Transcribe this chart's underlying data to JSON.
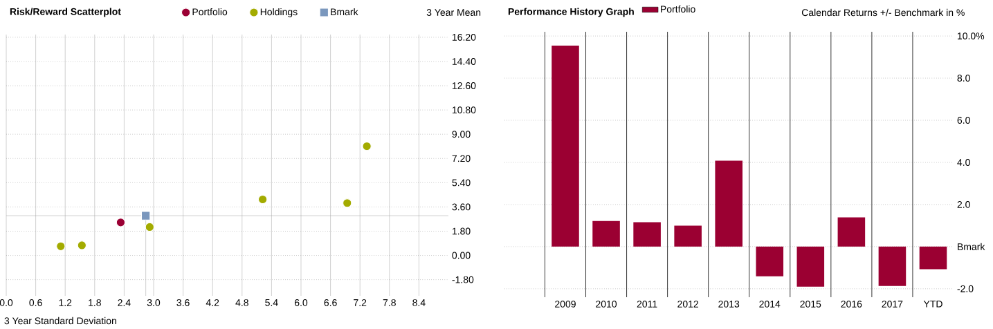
{
  "chart_data": [
    {
      "type": "scatter",
      "title": "Risk/Reward Scatterplot",
      "xlabel": "3 Year Standard Deviation",
      "ylabel": "3 Year Mean",
      "xlim": [
        0,
        9.0
      ],
      "ylim": [
        -3.0,
        16.4
      ],
      "xticks": [
        {
          "value": 0,
          "label": "0.0"
        },
        {
          "value": 0.6,
          "label": "0.6"
        },
        {
          "value": 1.2,
          "label": "1.2"
        },
        {
          "value": 1.8,
          "label": "1.8"
        },
        {
          "value": 2.4,
          "label": "2.4"
        },
        {
          "value": 3.0,
          "label": "3.0"
        },
        {
          "value": 3.6,
          "label": "3.6"
        },
        {
          "value": 4.2,
          "label": "4.2"
        },
        {
          "value": 4.8,
          "label": "4.8"
        },
        {
          "value": 5.4,
          "label": "5.4"
        },
        {
          "value": 6.0,
          "label": "6.0"
        },
        {
          "value": 6.6,
          "label": "6.6"
        },
        {
          "value": 7.2,
          "label": "7.2"
        },
        {
          "value": 7.8,
          "label": "7.8"
        },
        {
          "value": 8.4,
          "label": "8.4"
        }
      ],
      "yticks": [
        {
          "value": -1.8,
          "label": "-1.80"
        },
        {
          "value": 0,
          "label": "0.00"
        },
        {
          "value": 1.8,
          "label": "1.80"
        },
        {
          "value": 3.6,
          "label": "3.60"
        },
        {
          "value": 5.4,
          "label": "5.40"
        },
        {
          "value": 7.2,
          "label": "7.20"
        },
        {
          "value": 9.0,
          "label": "9.00"
        },
        {
          "value": 10.8,
          "label": "10.80"
        },
        {
          "value": 12.6,
          "label": "12.60"
        },
        {
          "value": 14.4,
          "label": "14.40"
        },
        {
          "value": 16.2,
          "label": "16.20"
        }
      ],
      "grid": true,
      "legend": "top",
      "series": [
        {
          "name": "Portfolio",
          "color": "#9b0034",
          "marker": "circle",
          "x": [
            2.33
          ],
          "values": [
            2.45
          ]
        },
        {
          "name": "Holdings",
          "color": "#a3ab00",
          "marker": "circle",
          "x": [
            1.11,
            1.54,
            2.92,
            5.22,
            6.94,
            7.34
          ],
          "values": [
            0.68,
            0.75,
            2.11,
            4.16,
            3.89,
            8.11
          ]
        },
        {
          "name": "Bmark",
          "color": "#7a97bd",
          "marker": "square",
          "x": [
            2.84
          ],
          "values": [
            2.95
          ]
        }
      ],
      "ref_lines": [
        {
          "axis": "y",
          "value": 2.95,
          "color": "#a6a6a6"
        },
        {
          "axis": "x",
          "value": 2.84,
          "color": "#a6a6a6"
        }
      ]
    },
    {
      "type": "bar",
      "title": "Performance History Graph",
      "subtitle": "Calendar Returns +/- Benchmark in %",
      "categories": [
        "2009",
        "2010",
        "2011",
        "2012",
        "2013",
        "2014",
        "2015",
        "2016",
        "2017",
        "YTD"
      ],
      "series": [
        {
          "name": "Portfolio",
          "color": "#9b0032",
          "values": [
            9.54,
            1.22,
            1.16,
            1.0,
            4.08,
            -1.41,
            -1.9,
            1.39,
            -1.87,
            -1.07
          ]
        }
      ],
      "ylim": [
        -2.4,
        10.2
      ],
      "yticks": [
        {
          "value": -2,
          "label": "-2.0"
        },
        {
          "value": 0,
          "label": "Bmark"
        },
        {
          "value": 2,
          "label": "2.0"
        },
        {
          "value": 4,
          "label": "4.0"
        },
        {
          "value": 6,
          "label": "6.0"
        },
        {
          "value": 8,
          "label": "8.0"
        },
        {
          "value": 10,
          "label": "10.0%"
        }
      ],
      "grid": true,
      "legend": "top"
    }
  ]
}
